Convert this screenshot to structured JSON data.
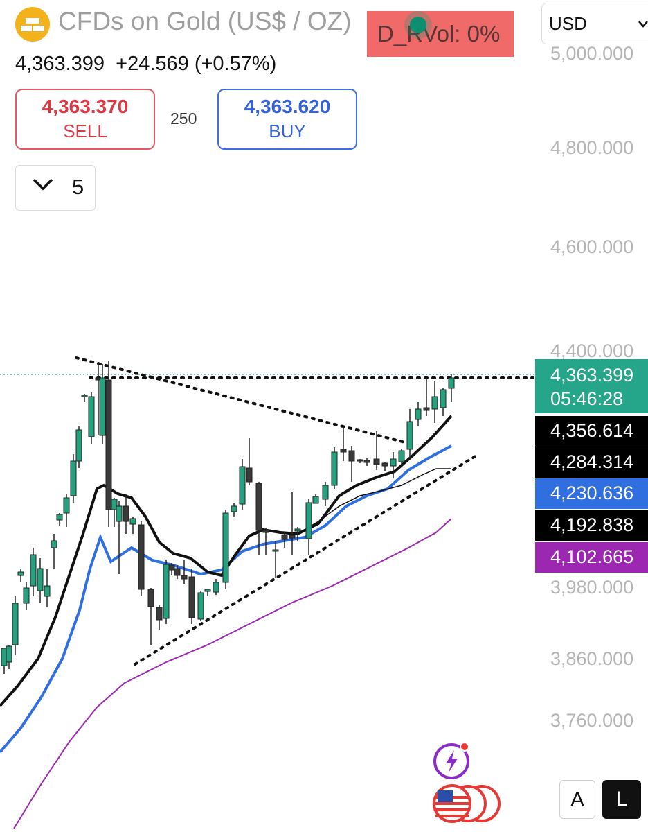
{
  "header": {
    "title": "CFDs on Gold (US$ / OZ)",
    "indicator": "D_RVol: 0%",
    "currency": "USD",
    "price": "4,363.399",
    "change": "+24.569 (+0.57%)"
  },
  "trade": {
    "sell_price": "4,363.370",
    "sell_label": "SELL",
    "spread": "250",
    "buy_price": "4,363.620",
    "buy_label": "BUY",
    "lots": "5"
  },
  "axis": {
    "ticks": [
      "5,000.000",
      "4,800.000",
      "4,600.000",
      "4,400.000",
      "3,980.000",
      "3,860.000",
      "3,760.000"
    ],
    "labels": {
      "price": "4,363.399",
      "countdown": "05:46:28",
      "ma1": "4,356.614",
      "ma2": "4,284.314",
      "ma3": "4,230.636",
      "ma4": "4,192.838",
      "ma5": "4,102.665"
    }
  },
  "font_toggle": {
    "a": "A",
    "l": "L"
  },
  "colors": {
    "bull": "#26a17f",
    "bear": "#3a3a3a",
    "ma_black": "#111111",
    "ma_blue": "#2f6fe0",
    "ma_purple": "#9c27b0",
    "price_label_bg": "#25a58a",
    "indicator_bg": "#f06a6a"
  },
  "icons": [
    "gold-bars-icon",
    "chevron-down-icon",
    "lightning-icon",
    "us-flag-icon"
  ]
}
